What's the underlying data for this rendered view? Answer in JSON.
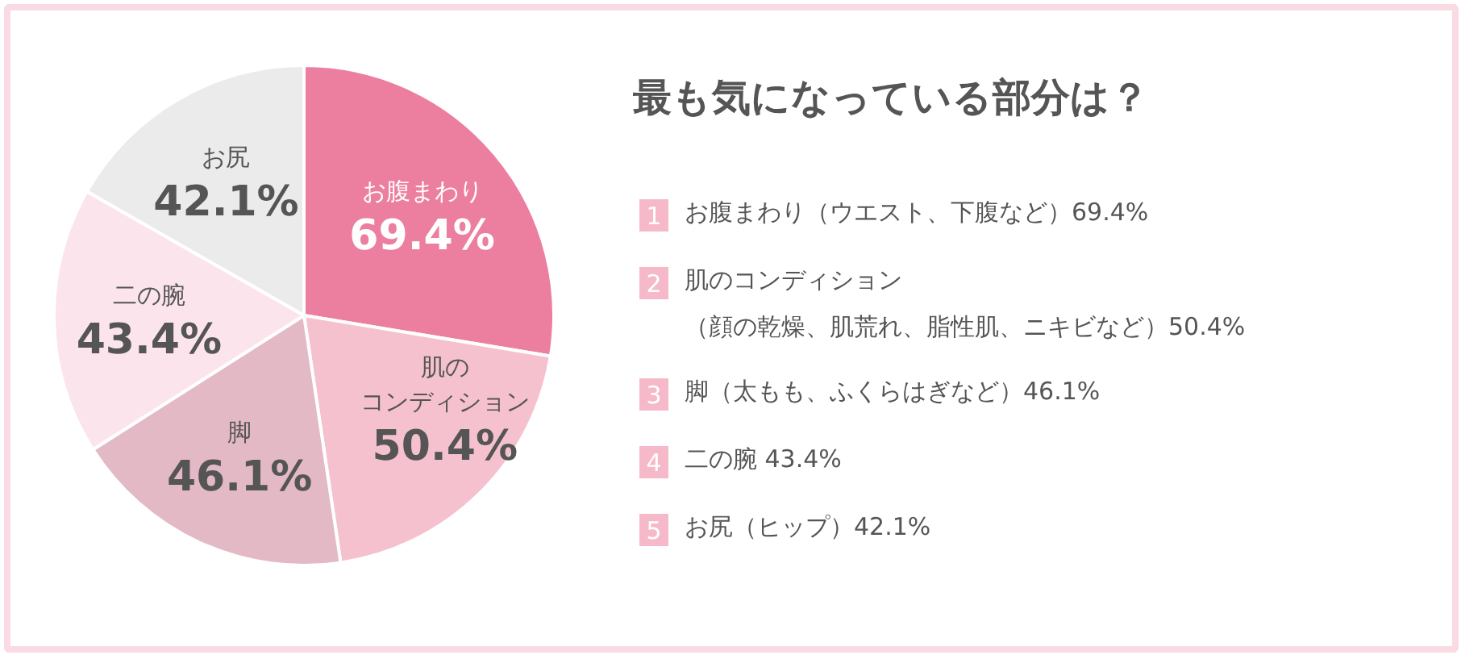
{
  "chart_data": {
    "type": "pie",
    "title": "最も気になっている部分は？",
    "categories": [
      "お腹まわり",
      "肌のコンディション",
      "脚",
      "二の腕",
      "お尻"
    ],
    "values": [
      69.4,
      50.4,
      46.1,
      43.4,
      42.1
    ],
    "value_labels": [
      "69.4%",
      "50.4%",
      "46.1%",
      "43.4%",
      "42.1%"
    ],
    "colors": [
      "#ec7fa0",
      "#f6c1cf",
      "#e3b9c6",
      "#fbe4eb",
      "#ebebeb"
    ],
    "annotations": [
      "1 お腹まわり（ウエスト、下腹など）69.4%",
      "2 肌のコンディション（顔の乾燥、肌荒れ、脂性肌、ニキビなど）50.4%",
      "3 脚（太もも、ふくらはぎなど）46.1%",
      "4 二の腕 43.4%",
      "5 お尻（ヒップ）42.1%"
    ]
  }
}
